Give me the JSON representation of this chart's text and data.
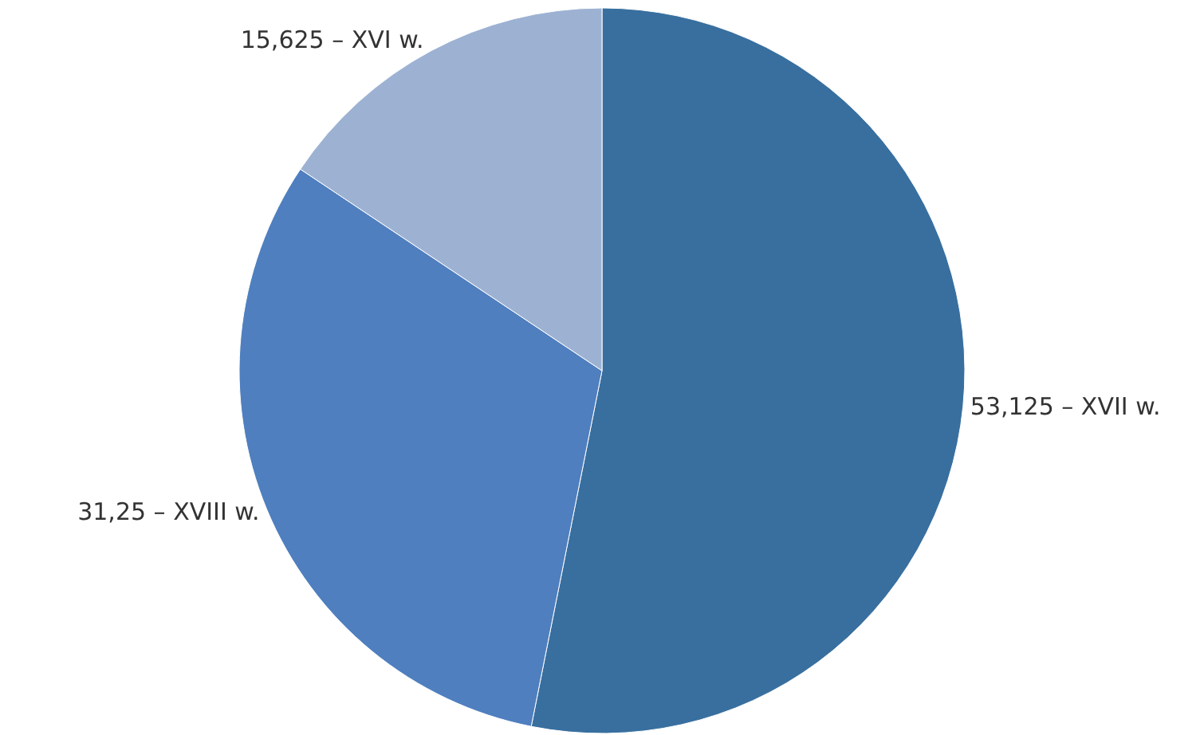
{
  "chart_data": {
    "type": "pie",
    "categories": [
      "53,125 – XVII w.",
      "31,25 – XVIII w.",
      "15,625 – XVI w."
    ],
    "values": [
      53.125,
      31.25,
      15.625
    ],
    "colors": [
      "#386f9f",
      "#4f7fbf",
      "#9db2d3"
    ],
    "legend": false
  }
}
